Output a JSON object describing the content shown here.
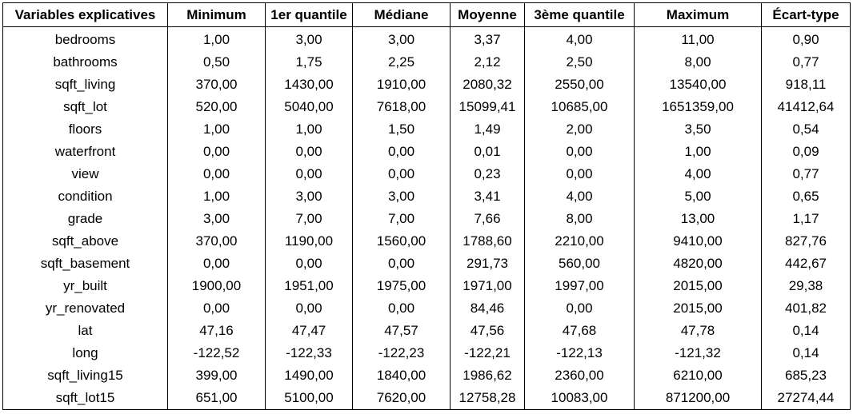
{
  "table": {
    "headers": [
      "Variables explicatives",
      "Minimum",
      "1er quantile",
      "Médiane",
      "Moyenne",
      "3ème quantile",
      "Maximum",
      "Écart-type"
    ],
    "rows": [
      [
        "bedrooms",
        "1,00",
        "3,00",
        "3,00",
        "3,37",
        "4,00",
        "11,00",
        "0,90"
      ],
      [
        "bathrooms",
        "0,50",
        "1,75",
        "2,25",
        "2,12",
        "2,50",
        "8,00",
        "0,77"
      ],
      [
        "sqft_living",
        "370,00",
        "1430,00",
        "1910,00",
        "2080,32",
        "2550,00",
        "13540,00",
        "918,11"
      ],
      [
        "sqft_lot",
        "520,00",
        "5040,00",
        "7618,00",
        "15099,41",
        "10685,00",
        "1651359,00",
        "41412,64"
      ],
      [
        "floors",
        "1,00",
        "1,00",
        "1,50",
        "1,49",
        "2,00",
        "3,50",
        "0,54"
      ],
      [
        "waterfront",
        "0,00",
        "0,00",
        "0,00",
        "0,01",
        "0,00",
        "1,00",
        "0,09"
      ],
      [
        "view",
        "0,00",
        "0,00",
        "0,00",
        "0,23",
        "0,00",
        "4,00",
        "0,77"
      ],
      [
        "condition",
        "1,00",
        "3,00",
        "3,00",
        "3,41",
        "4,00",
        "5,00",
        "0,65"
      ],
      [
        "grade",
        "3,00",
        "7,00",
        "7,00",
        "7,66",
        "8,00",
        "13,00",
        "1,17"
      ],
      [
        "sqft_above",
        "370,00",
        "1190,00",
        "1560,00",
        "1788,60",
        "2210,00",
        "9410,00",
        "827,76"
      ],
      [
        "sqft_basement",
        "0,00",
        "0,00",
        "0,00",
        "291,73",
        "560,00",
        "4820,00",
        "442,67"
      ],
      [
        "yr_built",
        "1900,00",
        "1951,00",
        "1975,00",
        "1971,00",
        "1997,00",
        "2015,00",
        "29,38"
      ],
      [
        "yr_renovated",
        "0,00",
        "0,00",
        "0,00",
        "84,46",
        "0,00",
        "2015,00",
        "401,82"
      ],
      [
        "lat",
        "47,16",
        "47,47",
        "47,57",
        "47,56",
        "47,68",
        "47,78",
        "0,14"
      ],
      [
        "long",
        "-122,52",
        "-122,33",
        "-122,23",
        "-122,21",
        "-122,13",
        "-121,32",
        "0,14"
      ],
      [
        "sqft_living15",
        "399,00",
        "1490,00",
        "1840,00",
        "1986,62",
        "2360,00",
        "6210,00",
        "685,23"
      ],
      [
        "sqft_lot15",
        "651,00",
        "5100,00",
        "7620,00",
        "12758,28",
        "10083,00",
        "871200,00",
        "27274,44"
      ]
    ]
  }
}
